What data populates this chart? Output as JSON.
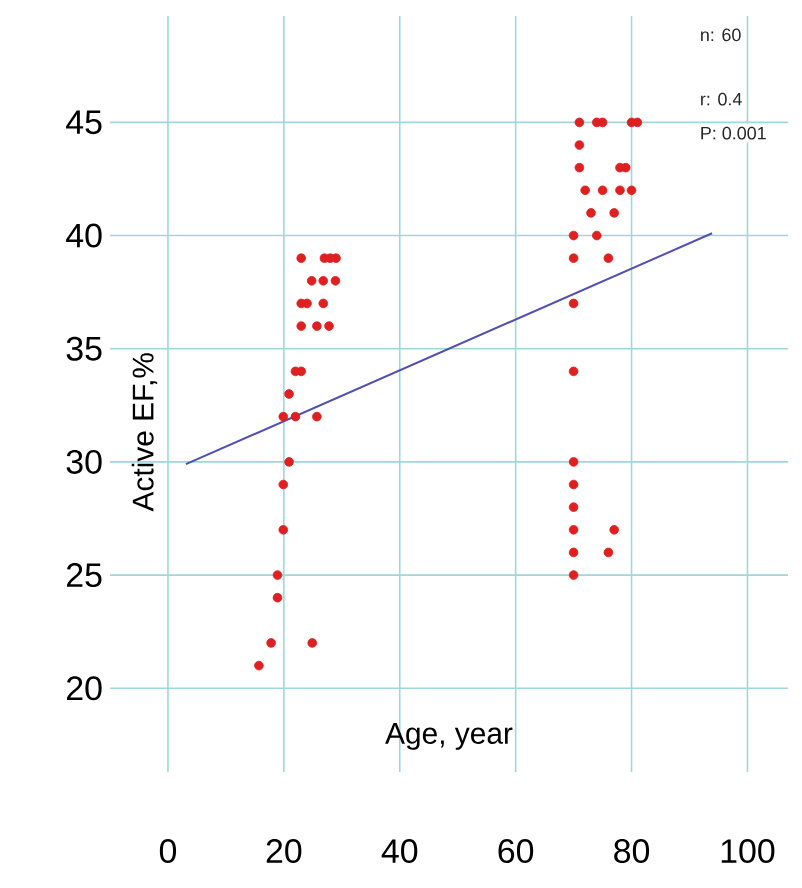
{
  "chart_data": {
    "type": "scatter",
    "xlabel": "Age, year",
    "ylabel": "Active EF,%",
    "xlim": [
      -10,
      107
    ],
    "ylim": [
      16.3,
      49.7
    ],
    "xticks": [
      0,
      20,
      40,
      60,
      80,
      100
    ],
    "yticks": [
      20,
      25,
      30,
      35,
      40,
      45
    ],
    "grid": true,
    "marker": "circle",
    "annotations": [
      "n: 60",
      "r: 0.4",
      "P: 0.001"
    ],
    "series": [
      {
        "color": "#e02020",
        "x": [
          15.7,
          17.8,
          18.9,
          18.9,
          19.9,
          19.9,
          20.9,
          20.9,
          19.9,
          22,
          25.7,
          22,
          23,
          23,
          23,
          24,
          23,
          25.7,
          27.8,
          26.8,
          24.8,
          26.8,
          28.9,
          27,
          28,
          29,
          24.9,
          70,
          70,
          70,
          70,
          70,
          70,
          70,
          70,
          70,
          70,
          71,
          71,
          71,
          72,
          73,
          74,
          76,
          74,
          75,
          80,
          81,
          75,
          78,
          80,
          78,
          79,
          77,
          77,
          76
        ],
        "values": [
          21,
          22,
          24,
          25,
          27,
          29,
          30,
          33,
          32,
          32,
          32,
          34,
          34,
          36,
          37,
          37,
          39,
          36,
          36,
          37,
          38,
          38,
          38,
          39,
          39,
          39,
          22,
          25,
          26,
          27,
          28,
          29,
          30,
          34,
          37,
          39,
          40,
          45,
          44,
          43,
          42,
          41,
          40,
          39,
          45,
          45,
          45,
          45,
          42,
          42,
          42,
          43,
          43,
          41,
          27,
          26
        ]
      },
      {
        "type": "line",
        "color": "#5050b0",
        "marker": "none",
        "x": [
          3.1,
          93.9
        ],
        "values": [
          29.9,
          40.1
        ]
      }
    ]
  }
}
